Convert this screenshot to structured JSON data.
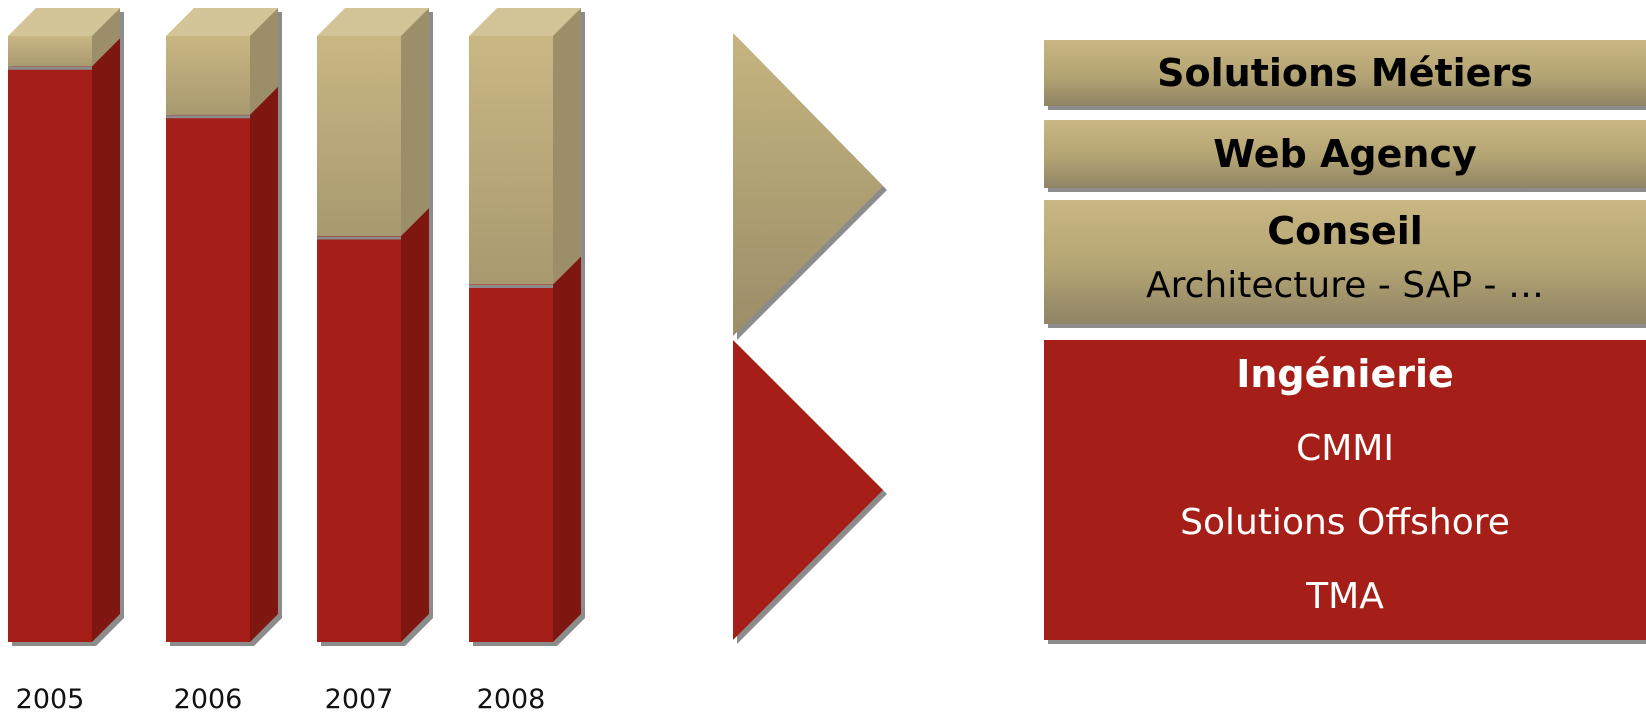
{
  "chart_data": {
    "type": "bar",
    "stacked": true,
    "categories": [
      "2005",
      "2006",
      "2007",
      "2008"
    ],
    "ylim": [
      0,
      100
    ],
    "series": [
      {
        "values": [
          95,
          87,
          67,
          59
        ],
        "color": "#a51f18"
      },
      {
        "values": [
          5,
          13,
          33,
          41
        ],
        "color": "#c2b27f"
      }
    ]
  },
  "arrows": {
    "upper_color": "#c2b27f",
    "lower_color": "#a51f18"
  },
  "segments": {
    "solutions_metiers": {
      "title": "Solutions Métiers"
    },
    "web_agency": {
      "title": "Web Agency"
    },
    "conseil": {
      "title": "Conseil",
      "subtitle": "Architecture - SAP - …"
    },
    "ingenierie": {
      "title": "Ingénierie",
      "items": [
        "CMMI",
        "Solutions Offshore",
        "TMA"
      ]
    }
  }
}
